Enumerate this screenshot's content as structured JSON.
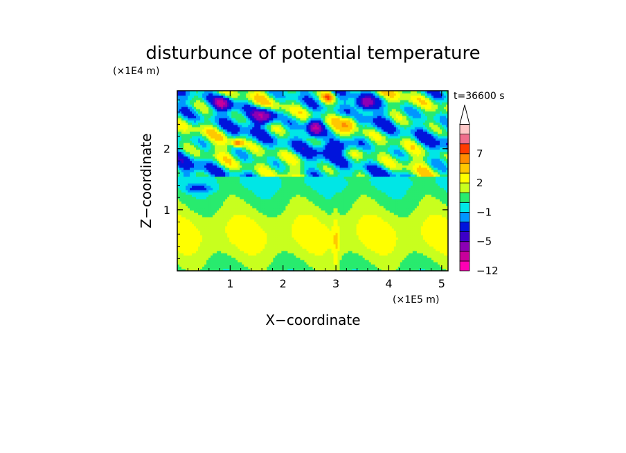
{
  "chart_data": {
    "type": "heatmap",
    "title": "disturbunce of potential temperature",
    "time_label": "t=36600 s",
    "xlabel": "X−coordinate",
    "ylabel": "Z−coordinate",
    "x_unit": "(×1E5 m)",
    "y_unit": "(×1E4 m)",
    "xlim": [
      0,
      5.12
    ],
    "ylim": [
      0,
      2.95
    ],
    "x_ticks": [
      1,
      2,
      3,
      4,
      5
    ],
    "y_ticks": [
      1,
      2
    ],
    "x_tick_labels": [
      "1",
      "2",
      "3",
      "4",
      "5"
    ],
    "y_tick_labels": [
      "1",
      "2"
    ],
    "grid": false,
    "colorbar": {
      "levels": [
        -12,
        -10,
        -7,
        -5,
        -4,
        -2,
        -1,
        0,
        1,
        2,
        3,
        5,
        7,
        8,
        9
      ],
      "colors": [
        "#ff00b4",
        "#c8009b",
        "#8c00b4",
        "#3c00c8",
        "#0014dc",
        "#0096ff",
        "#00e6e6",
        "#28eb6e",
        "#c8ff1e",
        "#ffff00",
        "#ffc800",
        "#ff8c00",
        "#ff3c00",
        "#f06e8c",
        "#ffc8c8"
      ],
      "extend": "max",
      "labels": [
        "−12",
        "−5",
        "−1",
        "2",
        "7"
      ],
      "label_values": [
        -12,
        -5,
        -1,
        2,
        7
      ]
    }
  }
}
